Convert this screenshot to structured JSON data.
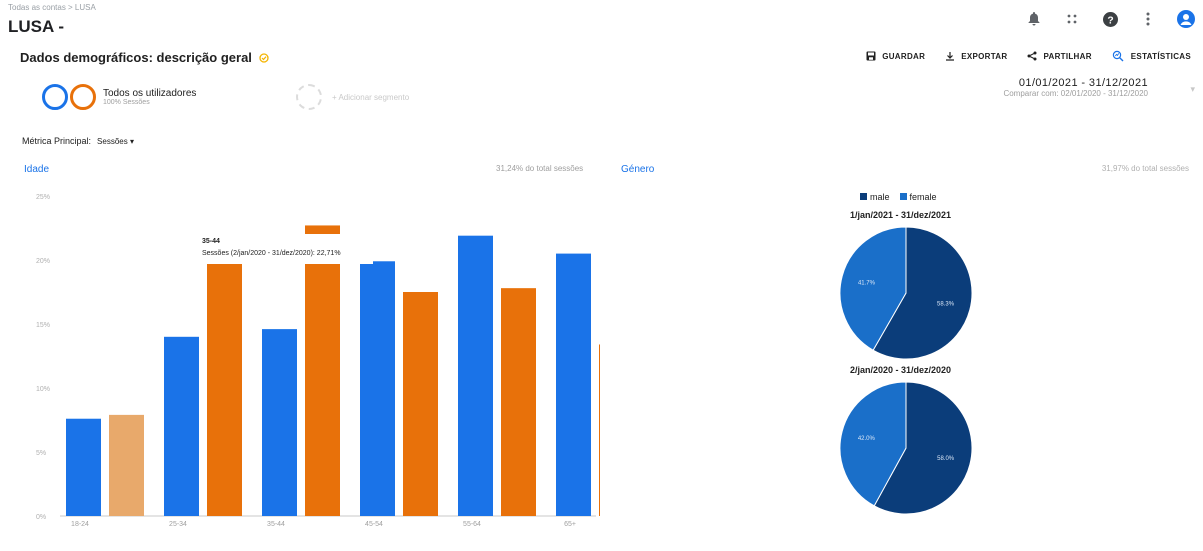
{
  "header": {
    "breadcrumb": "Todas as contas > LUSA",
    "app_name": "LUSA -"
  },
  "page": {
    "title": "Dados demográficos: descrição geral"
  },
  "toolbar": {
    "save": "GUARDAR",
    "export": "EXPORTAR",
    "share": "PARTILHAR",
    "insights": "ESTATÍSTICAS"
  },
  "segments": {
    "segment_name": "Todos os utilizadores",
    "segment_sub": "100% Sessões",
    "add_segment": "+ Adicionar segmento"
  },
  "date_range": {
    "current": "01/01/2021 - 31/12/2021",
    "compare": "Comparar com: 02/01/2020 - 31/12/2020"
  },
  "metric": {
    "label": "Métrica Principal:",
    "value": "Sessões"
  },
  "age_section": {
    "title": "Idade",
    "percent_text": "31,24% do total sessões"
  },
  "gender_section": {
    "title": "Género",
    "percent_text": "31,97% do total sessões"
  },
  "colors": {
    "blue_current": "#1a73e8",
    "orange_compare": "#e8710a",
    "male": "#0b3d7a",
    "female": "#1a6fc9"
  },
  "chart_data": [
    {
      "type": "bar",
      "categories": [
        "18-24",
        "25-34",
        "35-44",
        "45-54",
        "55-64",
        "65+"
      ],
      "series": [
        {
          "color": "#1a73e8",
          "values": [
            7.6,
            14.0,
            14.6,
            19.9,
            21.9,
            20.5
          ]
        },
        {
          "color": "#e8710a",
          "values": [
            7.9,
            19.8,
            22.7,
            17.5,
            17.8,
            13.4
          ]
        }
      ],
      "highlight_category": 2,
      "ylim": [
        0,
        25
      ],
      "yticks": [
        "0%",
        "5%",
        "10%",
        "15%",
        "20%",
        "25%"
      ],
      "tooltip": {
        "title": "35-44",
        "text": "Sessões (2/jan/2020 - 31/dez/2020): 22,71%"
      }
    },
    {
      "type": "pie",
      "title": "1/jan/2021 - 31/dez/2021",
      "legend": [
        "male",
        "female"
      ],
      "slices": [
        {
          "label": "male",
          "value": 58.3,
          "text": "58.3%"
        },
        {
          "label": "female",
          "value": 41.7,
          "text": "41.7%"
        }
      ]
    },
    {
      "type": "pie",
      "title": "2/jan/2020 - 31/dez/2020",
      "slices": [
        {
          "label": "male",
          "value": 58.0,
          "text": "58.0%"
        },
        {
          "label": "female",
          "value": 42.0,
          "text": "42.0%"
        }
      ]
    }
  ]
}
